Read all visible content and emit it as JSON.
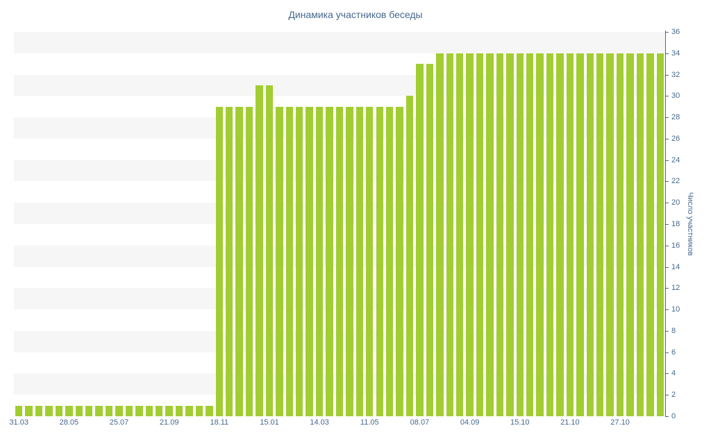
{
  "title": "Динамика участников беседы",
  "colors": {
    "bar": "#a2cd32",
    "axis": "#45688e",
    "label": "#45688e",
    "stripe": "#f6f6f6",
    "title": "#45688e"
  },
  "chart_data": {
    "type": "bar",
    "title": "Динамика участников беседы",
    "xlabel": "",
    "ylabel": "Число участников",
    "ylim": [
      0,
      36
    ],
    "ytick_step": 2,
    "grid": "horizontal-bands",
    "legend": "none",
    "x_tick_labels": [
      "31.03",
      "28.05",
      "25.07",
      "21.09",
      "18.11",
      "15.01",
      "14.03",
      "11.05",
      "08.07",
      "04.09",
      "15.10",
      "21.10",
      "27.10"
    ],
    "x_tick_every": 5,
    "values": [
      1,
      1,
      1,
      1,
      1,
      1,
      1,
      1,
      1,
      1,
      1,
      1,
      1,
      1,
      1,
      1,
      1,
      1,
      1,
      1,
      29,
      29,
      29,
      29,
      31,
      31,
      29,
      29,
      29,
      29,
      29,
      29,
      29,
      29,
      29,
      29,
      29,
      29,
      29,
      30,
      33,
      33,
      34,
      34,
      34,
      34,
      34,
      34,
      34,
      34,
      34,
      34,
      34,
      34,
      34,
      34,
      34,
      34,
      34,
      34,
      34,
      34,
      34,
      34,
      34
    ]
  }
}
